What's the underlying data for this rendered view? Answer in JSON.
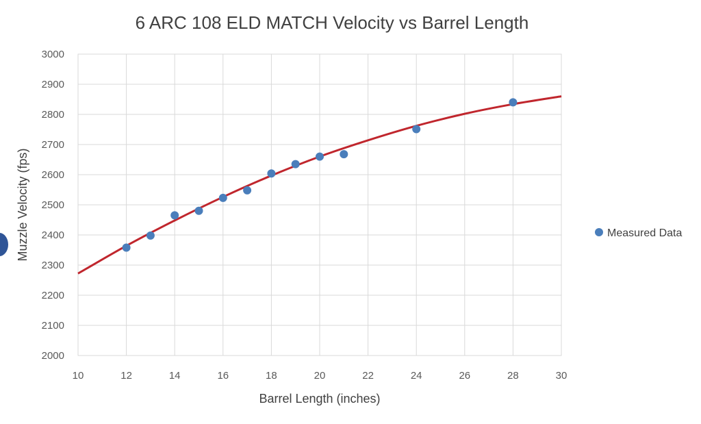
{
  "chart_data": {
    "type": "scatter",
    "title": "6 ARC 108 ELD MATCH Velocity vs Barrel Length",
    "xlabel": "Barrel Length (inches)",
    "ylabel": "Muzzle Velocity (fps)",
    "xlim": [
      10,
      30
    ],
    "ylim": [
      2000,
      3000
    ],
    "xticks": [
      10,
      12,
      14,
      16,
      18,
      20,
      22,
      24,
      26,
      28,
      30
    ],
    "yticks": [
      2000,
      2100,
      2200,
      2300,
      2400,
      2500,
      2600,
      2700,
      2800,
      2900,
      3000
    ],
    "grid": true,
    "legend_position": "right",
    "series": [
      {
        "name": "Measured Data",
        "kind": "scatter",
        "color": "#4a7ebb",
        "x": [
          12,
          13,
          14,
          15,
          16,
          17,
          18,
          19,
          20,
          21,
          24,
          28
        ],
        "y": [
          2358,
          2398,
          2465,
          2480,
          2523,
          2548,
          2604,
          2635,
          2660,
          2668,
          2751,
          2840
        ]
      },
      {
        "kind": "line",
        "color": "#c0262d",
        "x": [
          10,
          12,
          14,
          16,
          18,
          20,
          22,
          24,
          26,
          28,
          30
        ],
        "y": [
          2272,
          2364,
          2448,
          2526,
          2597,
          2660,
          2714,
          2762,
          2802,
          2834,
          2860
        ]
      }
    ]
  }
}
